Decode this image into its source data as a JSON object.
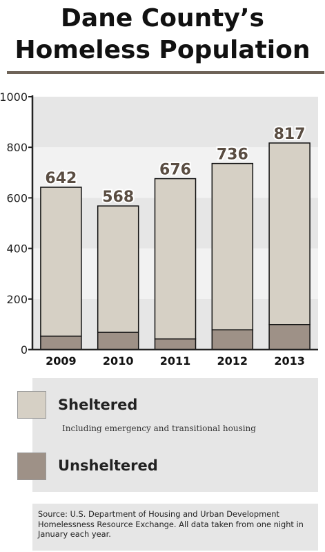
{
  "title_line1": "Dane County’s",
  "title_line2": "Homeless Population",
  "colors": {
    "sheltered": "#d6d0c5",
    "unsheltered": "#9e9187",
    "plot_band_dark": "#e6e6e6",
    "plot_band_light": "#f2f2f2",
    "value_label": "#5a4d42"
  },
  "chart_data": {
    "type": "bar",
    "stacked": true,
    "categories": [
      "2009",
      "2010",
      "2011",
      "2012",
      "2013"
    ],
    "series": [
      {
        "name": "Unsheltered",
        "values": [
          53,
          68,
          42,
          78,
          99
        ]
      },
      {
        "name": "Sheltered",
        "values": [
          589,
          500,
          634,
          658,
          718
        ]
      }
    ],
    "totals": [
      642,
      568,
      676,
      736,
      817
    ],
    "ylim": [
      0,
      1000
    ],
    "yticks": [
      0,
      200,
      400,
      600,
      800,
      1000
    ],
    "grid": "alternating horizontal bands",
    "legend_position": "below chart"
  },
  "legend": {
    "sheltered_label": "Sheltered",
    "sheltered_note": "Including emergency and transitional housing",
    "unsheltered_label": "Unsheltered"
  },
  "source": "Source: U.S. Department of Housing and Urban Development Homelessness Resource Exchange. All data taken from one night in January each year."
}
